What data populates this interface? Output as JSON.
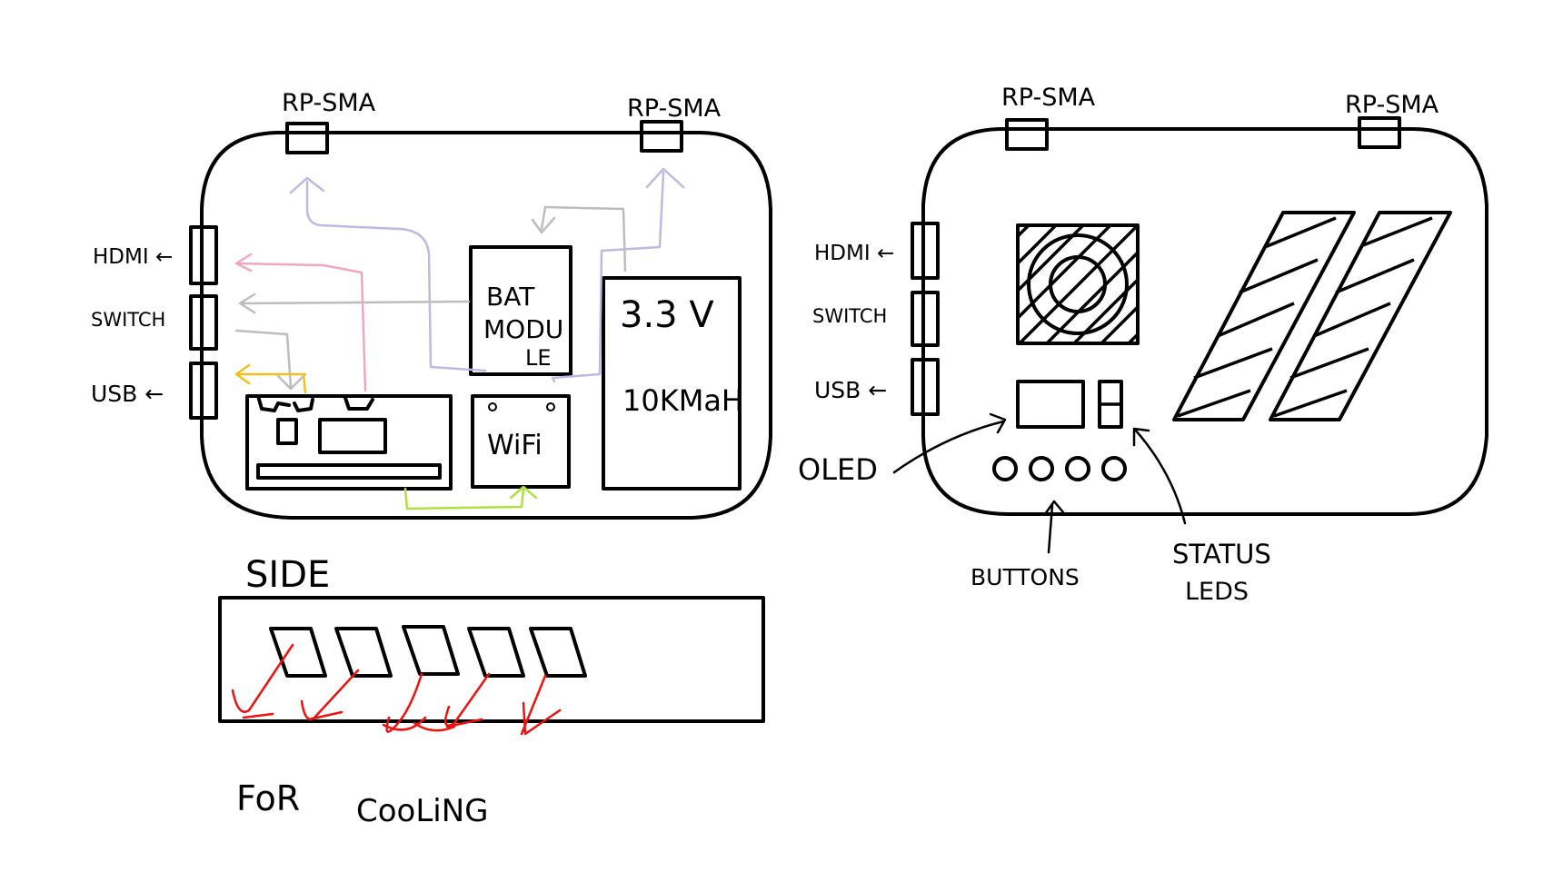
{
  "colors": {
    "ink": "#000000",
    "wire_lavender": "#c0b8e0",
    "wire_gray": "#bdbdbd",
    "wire_pink": "#f0a8bc",
    "wire_yellow": "#f0c020",
    "wire_green": "#b0e040",
    "cooling_arrows": "#ee1111"
  },
  "top_view": {
    "antenna_left": "RP-SMA",
    "antenna_right": "RP-SMA",
    "port_hdmi": "HDMI ←",
    "port_switch": "SWITCH",
    "port_usb": "USB ←",
    "battery_module": [
      "BAT",
      "MODU",
      "LE"
    ],
    "wifi": "WiFi",
    "battery_voltage": "3.3 V",
    "battery_capacity": "10KMaH"
  },
  "front_view": {
    "antenna_left": "RP-SMA",
    "antenna_right": "RP-SMA",
    "port_hdmi": "HDMI ←",
    "port_switch": "SWITCH",
    "port_usb": "USB ←",
    "oled_label": "OLED",
    "buttons_label": "BUTTONS",
    "status_leds_label": [
      "STATUS",
      "LEDS"
    ]
  },
  "side_view": {
    "title": "SIDE",
    "caption_1": "FoR",
    "caption_2": "CooLiNG"
  }
}
